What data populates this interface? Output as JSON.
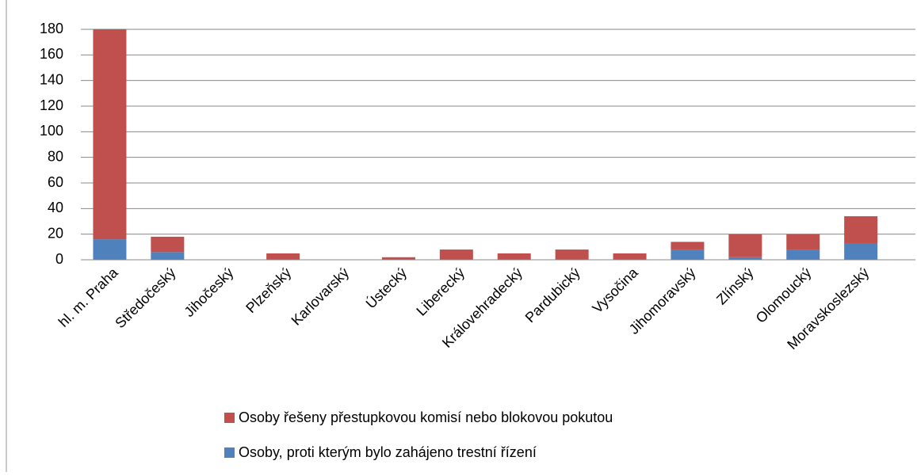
{
  "chart_data": {
    "type": "stacked_bar",
    "categories": [
      "hl. m. Praha",
      "Středočeský",
      "Jihočeský",
      "Plzeňský",
      "Karlovarský",
      "Ústecký",
      "Liberecký",
      "Královehradecký",
      "Pardubický",
      "Vysočina",
      "Jihomoravský",
      "Zlínský",
      "Olomoucký",
      "Moravskoslezský"
    ],
    "series": [
      {
        "name": "Osoby, proti kterým bylo zahájeno trestní řízení",
        "color": "#4f81bd",
        "values": [
          16,
          6,
          0,
          0,
          0,
          0,
          0,
          0,
          0,
          0,
          8,
          2,
          8,
          13
        ]
      },
      {
        "name": "Osoby řešeny přestupkovou komisí nebo blokovou pokutou",
        "color": "#c0504d",
        "values": [
          164,
          12,
          0,
          5,
          0,
          2,
          8,
          5,
          8,
          5,
          6,
          18,
          12,
          21
        ]
      }
    ],
    "ylim": [
      0,
      180
    ],
    "yticks": [
      0,
      20,
      40,
      60,
      80,
      100,
      120,
      140,
      160,
      180
    ],
    "grid": true
  }
}
